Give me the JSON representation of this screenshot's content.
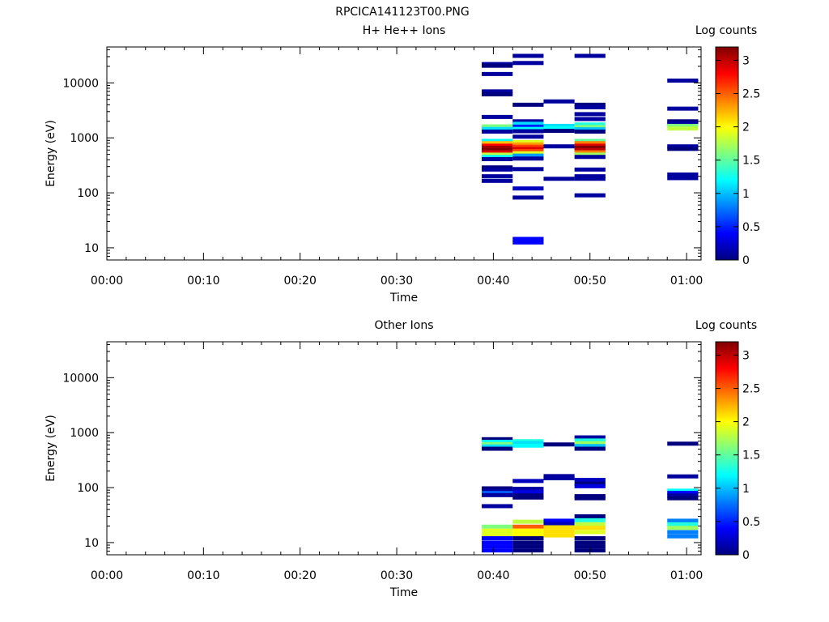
{
  "figure_title": "RPCICA141123T00.PNG",
  "colormap": [
    "#00007f",
    "#0000ff",
    "#007fff",
    "#00ffff",
    "#7fff7f",
    "#ffff00",
    "#ff7f00",
    "#ff0000",
    "#7f0000"
  ],
  "chart_data": [
    {
      "type": "heatmap",
      "title": "H+ He++ Ions",
      "xlabel": "Time",
      "ylabel": "Energy (eV)",
      "xlim": [
        0,
        61.5
      ],
      "ylim": [
        6,
        45000
      ],
      "yscale": "log",
      "x_ticks": [
        {
          "value": 0,
          "label": "00:00"
        },
        {
          "value": 10,
          "label": "00:10"
        },
        {
          "value": 20,
          "label": "00:20"
        },
        {
          "value": 30,
          "label": "00:30"
        },
        {
          "value": 40,
          "label": "00:40"
        },
        {
          "value": 50,
          "label": "00:50"
        },
        {
          "value": 60,
          "label": "01:00"
        }
      ],
      "y_ticks": [
        {
          "value": 10,
          "label": "10"
        },
        {
          "value": 100,
          "label": "100"
        },
        {
          "value": 1000,
          "label": "1000"
        },
        {
          "value": 10000,
          "label": "10000"
        }
      ],
      "colorbar": {
        "label": "Log counts",
        "range": [
          0,
          3.2
        ],
        "ticks": [
          {
            "value": 0,
            "label": "0"
          },
          {
            "value": 0.5,
            "label": "0.5"
          },
          {
            "value": 1,
            "label": "1"
          },
          {
            "value": 1.5,
            "label": "1.5"
          },
          {
            "value": 2,
            "label": "2"
          },
          {
            "value": 2.5,
            "label": "2.5"
          },
          {
            "value": 3,
            "label": "3"
          }
        ]
      },
      "cells": [
        {
          "t0": 38.8,
          "t1": 42.0,
          "e": 22000,
          "v": 0.1
        },
        {
          "t0": 38.8,
          "t1": 42.0,
          "e": 20500,
          "v": 0.0
        },
        {
          "t0": 38.8,
          "t1": 42.0,
          "e": 14500,
          "v": 0.1
        },
        {
          "t0": 38.8,
          "t1": 42.0,
          "e": 7000,
          "v": 0.1
        },
        {
          "t0": 38.8,
          "t1": 42.0,
          "e": 6200,
          "v": 0.0
        },
        {
          "t0": 38.8,
          "t1": 42.0,
          "e": 2400,
          "v": 0.1
        },
        {
          "t0": 38.8,
          "t1": 42.0,
          "e": 1620,
          "v": 1.6
        },
        {
          "t0": 38.8,
          "t1": 42.0,
          "e": 1450,
          "v": 1.1
        },
        {
          "t0": 38.8,
          "t1": 42.0,
          "e": 1300,
          "v": 0.1
        },
        {
          "t0": 38.8,
          "t1": 42.0,
          "e": 880,
          "v": 1.2
        },
        {
          "t0": 38.8,
          "t1": 42.0,
          "e": 800,
          "v": 2.2
        },
        {
          "t0": 38.8,
          "t1": 42.0,
          "e": 720,
          "v": 2.8
        },
        {
          "t0": 38.8,
          "t1": 42.0,
          "e": 660,
          "v": 3.1
        },
        {
          "t0": 38.8,
          "t1": 42.0,
          "e": 600,
          "v": 3.2
        },
        {
          "t0": 38.8,
          "t1": 42.0,
          "e": 545,
          "v": 2.9
        },
        {
          "t0": 38.8,
          "t1": 42.0,
          "e": 495,
          "v": 1.8
        },
        {
          "t0": 38.8,
          "t1": 42.0,
          "e": 450,
          "v": 1.2
        },
        {
          "t0": 38.8,
          "t1": 42.0,
          "e": 410,
          "v": 0.1
        },
        {
          "t0": 38.8,
          "t1": 42.0,
          "e": 290,
          "v": 0.0
        },
        {
          "t0": 38.8,
          "t1": 42.0,
          "e": 265,
          "v": 0.1
        },
        {
          "t0": 38.8,
          "t1": 42.0,
          "e": 200,
          "v": 0.1
        },
        {
          "t0": 38.8,
          "t1": 42.0,
          "e": 165,
          "v": 0.1
        },
        {
          "t0": 42.0,
          "t1": 45.2,
          "e": 31000,
          "v": 0.1
        },
        {
          "t0": 42.0,
          "t1": 45.2,
          "e": 23000,
          "v": 0.1
        },
        {
          "t0": 42.0,
          "t1": 45.2,
          "e": 4000,
          "v": 0.0
        },
        {
          "t0": 42.0,
          "t1": 45.2,
          "e": 2000,
          "v": 0.1
        },
        {
          "t0": 42.0,
          "t1": 45.2,
          "e": 1800,
          "v": 1.1
        },
        {
          "t0": 42.0,
          "t1": 45.2,
          "e": 1600,
          "v": 0.5
        },
        {
          "t0": 42.0,
          "t1": 45.2,
          "e": 1450,
          "v": 1.2
        },
        {
          "t0": 42.0,
          "t1": 45.2,
          "e": 1320,
          "v": 0.1
        },
        {
          "t0": 42.0,
          "t1": 45.2,
          "e": 1050,
          "v": 0.1
        },
        {
          "t0": 42.0,
          "t1": 45.2,
          "e": 840,
          "v": 1.9
        },
        {
          "t0": 42.0,
          "t1": 45.2,
          "e": 760,
          "v": 2.3
        },
        {
          "t0": 42.0,
          "t1": 45.2,
          "e": 690,
          "v": 2.6
        },
        {
          "t0": 42.0,
          "t1": 45.2,
          "e": 630,
          "v": 2.9
        },
        {
          "t0": 42.0,
          "t1": 45.2,
          "e": 575,
          "v": 2.6
        },
        {
          "t0": 42.0,
          "t1": 45.2,
          "e": 525,
          "v": 1.9
        },
        {
          "t0": 42.0,
          "t1": 45.2,
          "e": 475,
          "v": 0.9
        },
        {
          "t0": 42.0,
          "t1": 45.2,
          "e": 420,
          "v": 0.1
        },
        {
          "t0": 42.0,
          "t1": 45.2,
          "e": 270,
          "v": 0.1
        },
        {
          "t0": 42.0,
          "t1": 45.2,
          "e": 120,
          "v": 0.2
        },
        {
          "t0": 42.0,
          "t1": 45.2,
          "e": 82,
          "v": 0.1
        },
        {
          "t0": 42.0,
          "t1": 45.2,
          "e": 14.5,
          "v": 0.4
        },
        {
          "t0": 42.0,
          "t1": 45.2,
          "e": 12.5,
          "v": 0.4
        },
        {
          "t0": 45.2,
          "t1": 48.4,
          "e": 4600,
          "v": 0.1
        },
        {
          "t0": 45.2,
          "t1": 48.4,
          "e": 1650,
          "v": 1.1
        },
        {
          "t0": 45.2,
          "t1": 48.4,
          "e": 1500,
          "v": 1.2
        },
        {
          "t0": 45.2,
          "t1": 48.4,
          "e": 1340,
          "v": 0.0
        },
        {
          "t0": 45.2,
          "t1": 48.4,
          "e": 700,
          "v": 0.1
        },
        {
          "t0": 45.2,
          "t1": 48.4,
          "e": 180,
          "v": 0.1
        },
        {
          "t0": 48.4,
          "t1": 51.6,
          "e": 31000,
          "v": 0.1
        },
        {
          "t0": 48.4,
          "t1": 51.6,
          "e": 4000,
          "v": 0.0
        },
        {
          "t0": 48.4,
          "t1": 51.6,
          "e": 3600,
          "v": 0.1
        },
        {
          "t0": 48.4,
          "t1": 51.6,
          "e": 2700,
          "v": 0.1
        },
        {
          "t0": 48.4,
          "t1": 51.6,
          "e": 2200,
          "v": 0.1
        },
        {
          "t0": 48.4,
          "t1": 51.6,
          "e": 1750,
          "v": 1.3
        },
        {
          "t0": 48.4,
          "t1": 51.6,
          "e": 1580,
          "v": 1.6
        },
        {
          "t0": 48.4,
          "t1": 51.6,
          "e": 1430,
          "v": 1.0
        },
        {
          "t0": 48.4,
          "t1": 51.6,
          "e": 1300,
          "v": 0.0
        },
        {
          "t0": 48.4,
          "t1": 51.6,
          "e": 880,
          "v": 1.5
        },
        {
          "t0": 48.4,
          "t1": 51.6,
          "e": 800,
          "v": 2.4
        },
        {
          "t0": 48.4,
          "t1": 51.6,
          "e": 720,
          "v": 2.9
        },
        {
          "t0": 48.4,
          "t1": 51.6,
          "e": 660,
          "v": 3.2
        },
        {
          "t0": 48.4,
          "t1": 51.6,
          "e": 600,
          "v": 3.0
        },
        {
          "t0": 48.4,
          "t1": 51.6,
          "e": 545,
          "v": 2.4
        },
        {
          "t0": 48.4,
          "t1": 51.6,
          "e": 495,
          "v": 1.7
        },
        {
          "t0": 48.4,
          "t1": 51.6,
          "e": 450,
          "v": 0.1
        },
        {
          "t0": 48.4,
          "t1": 51.6,
          "e": 265,
          "v": 0.1
        },
        {
          "t0": 48.4,
          "t1": 51.6,
          "e": 200,
          "v": 0.1
        },
        {
          "t0": 48.4,
          "t1": 51.6,
          "e": 180,
          "v": 0.1
        },
        {
          "t0": 48.4,
          "t1": 51.6,
          "e": 90,
          "v": 0.1
        },
        {
          "t0": 58.0,
          "t1": 61.2,
          "e": 11000,
          "v": 0.1
        },
        {
          "t0": 58.0,
          "t1": 61.2,
          "e": 3400,
          "v": 0.1
        },
        {
          "t0": 58.0,
          "t1": 61.2,
          "e": 2000,
          "v": 0.0
        },
        {
          "t0": 58.0,
          "t1": 61.2,
          "e": 1850,
          "v": 0.1
        },
        {
          "t0": 58.0,
          "t1": 61.2,
          "e": 1650,
          "v": 1.6
        },
        {
          "t0": 58.0,
          "t1": 61.2,
          "e": 1480,
          "v": 1.8
        },
        {
          "t0": 58.0,
          "t1": 61.2,
          "e": 700,
          "v": 0.1
        },
        {
          "t0": 58.0,
          "t1": 61.2,
          "e": 630,
          "v": 0.0
        },
        {
          "t0": 58.0,
          "t1": 61.2,
          "e": 215,
          "v": 0.1
        },
        {
          "t0": 58.0,
          "t1": 61.2,
          "e": 185,
          "v": 0.1
        }
      ]
    },
    {
      "type": "heatmap",
      "title": "Other Ions",
      "xlabel": "Time",
      "ylabel": "Energy (eV)",
      "xlim": [
        0,
        61.5
      ],
      "ylim": [
        6,
        45000
      ],
      "yscale": "log",
      "x_ticks": [
        {
          "value": 0,
          "label": "00:00"
        },
        {
          "value": 10,
          "label": "00:10"
        },
        {
          "value": 20,
          "label": "00:20"
        },
        {
          "value": 30,
          "label": "00:30"
        },
        {
          "value": 40,
          "label": "00:40"
        },
        {
          "value": 50,
          "label": "00:50"
        },
        {
          "value": 60,
          "label": "01:00"
        }
      ],
      "y_ticks": [
        {
          "value": 10,
          "label": "10"
        },
        {
          "value": 100,
          "label": "100"
        },
        {
          "value": 1000,
          "label": "1000"
        },
        {
          "value": 10000,
          "label": "10000"
        }
      ],
      "colorbar": {
        "label": "Log counts",
        "range": [
          0,
          3.2
        ],
        "ticks": [
          {
            "value": 0,
            "label": "0"
          },
          {
            "value": 0.5,
            "label": "0.5"
          },
          {
            "value": 1,
            "label": "1"
          },
          {
            "value": 1.5,
            "label": "1.5"
          },
          {
            "value": 2,
            "label": "2"
          },
          {
            "value": 2.5,
            "label": "2.5"
          },
          {
            "value": 3,
            "label": "3"
          }
        ]
      },
      "cells": [
        {
          "t0": 38.8,
          "t1": 42.0,
          "e": 760,
          "v": 0.0
        },
        {
          "t0": 38.8,
          "t1": 42.0,
          "e": 680,
          "v": 1.2
        },
        {
          "t0": 38.8,
          "t1": 42.0,
          "e": 620,
          "v": 1.6
        },
        {
          "t0": 38.8,
          "t1": 42.0,
          "e": 560,
          "v": 1.1
        },
        {
          "t0": 38.8,
          "t1": 42.0,
          "e": 510,
          "v": 0.0
        },
        {
          "t0": 38.8,
          "t1": 42.0,
          "e": 97,
          "v": 0.0
        },
        {
          "t0": 38.8,
          "t1": 42.0,
          "e": 88,
          "v": 0.1
        },
        {
          "t0": 38.8,
          "t1": 42.0,
          "e": 80,
          "v": 0.7
        },
        {
          "t0": 38.8,
          "t1": 42.0,
          "e": 73,
          "v": 0.1
        },
        {
          "t0": 38.8,
          "t1": 42.0,
          "e": 46,
          "v": 0.1
        },
        {
          "t0": 38.8,
          "t1": 42.0,
          "e": 19.5,
          "v": 1.6
        },
        {
          "t0": 38.8,
          "t1": 42.0,
          "e": 16.5,
          "v": 1.9
        },
        {
          "t0": 38.8,
          "t1": 42.0,
          "e": 14,
          "v": 1.9
        },
        {
          "t0": 38.8,
          "t1": 42.0,
          "e": 12,
          "v": 0.4
        },
        {
          "t0": 38.8,
          "t1": 42.0,
          "e": 10,
          "v": 0.4
        },
        {
          "t0": 38.8,
          "t1": 42.0,
          "e": 8.5,
          "v": 0.4
        },
        {
          "t0": 38.8,
          "t1": 42.0,
          "e": 7.2,
          "v": 0.4
        },
        {
          "t0": 42.0,
          "t1": 45.2,
          "e": 700,
          "v": 1.3
        },
        {
          "t0": 42.0,
          "t1": 45.2,
          "e": 640,
          "v": 1.1
        },
        {
          "t0": 42.0,
          "t1": 45.2,
          "e": 580,
          "v": 1.2
        },
        {
          "t0": 42.0,
          "t1": 45.2,
          "e": 132,
          "v": 0.2
        },
        {
          "t0": 42.0,
          "t1": 45.2,
          "e": 95,
          "v": 0.1
        },
        {
          "t0": 42.0,
          "t1": 45.2,
          "e": 84,
          "v": 0.3
        },
        {
          "t0": 42.0,
          "t1": 45.2,
          "e": 72,
          "v": 0.0
        },
        {
          "t0": 42.0,
          "t1": 45.2,
          "e": 66,
          "v": 0.0
        },
        {
          "t0": 42.0,
          "t1": 45.2,
          "e": 24,
          "v": 1.8
        },
        {
          "t0": 42.0,
          "t1": 45.2,
          "e": 19.5,
          "v": 2.5
        },
        {
          "t0": 42.0,
          "t1": 45.2,
          "e": 16.5,
          "v": 2.0
        },
        {
          "t0": 42.0,
          "t1": 45.2,
          "e": 14,
          "v": 2.0
        },
        {
          "t0": 42.0,
          "t1": 45.2,
          "e": 12,
          "v": 0.0
        },
        {
          "t0": 42.0,
          "t1": 45.2,
          "e": 10,
          "v": 0.0
        },
        {
          "t0": 42.0,
          "t1": 45.2,
          "e": 8.5,
          "v": 0.0
        },
        {
          "t0": 42.0,
          "t1": 45.2,
          "e": 7.2,
          "v": 0.0
        },
        {
          "t0": 45.2,
          "t1": 48.4,
          "e": 610,
          "v": 0.0
        },
        {
          "t0": 45.2,
          "t1": 48.4,
          "e": 162,
          "v": 0.1
        },
        {
          "t0": 45.2,
          "t1": 48.4,
          "e": 148,
          "v": 0.1
        },
        {
          "t0": 45.2,
          "t1": 48.4,
          "e": 25,
          "v": 0.4
        },
        {
          "t0": 45.2,
          "t1": 48.4,
          "e": 22,
          "v": 0.2
        },
        {
          "t0": 45.2,
          "t1": 48.4,
          "e": 19,
          "v": 2.1
        },
        {
          "t0": 45.2,
          "t1": 48.4,
          "e": 16,
          "v": 2.1
        },
        {
          "t0": 45.2,
          "t1": 48.4,
          "e": 13.5,
          "v": 2.1
        },
        {
          "t0": 48.4,
          "t1": 51.6,
          "e": 820,
          "v": 0.1
        },
        {
          "t0": 48.4,
          "t1": 51.6,
          "e": 720,
          "v": 1.3
        },
        {
          "t0": 48.4,
          "t1": 51.6,
          "e": 640,
          "v": 1.7
        },
        {
          "t0": 48.4,
          "t1": 51.6,
          "e": 570,
          "v": 1.0
        },
        {
          "t0": 48.4,
          "t1": 51.6,
          "e": 510,
          "v": 0.0
        },
        {
          "t0": 48.4,
          "t1": 51.6,
          "e": 138,
          "v": 0.2
        },
        {
          "t0": 48.4,
          "t1": 51.6,
          "e": 118,
          "v": 0.0
        },
        {
          "t0": 48.4,
          "t1": 51.6,
          "e": 106,
          "v": 0.3
        },
        {
          "t0": 48.4,
          "t1": 51.6,
          "e": 70,
          "v": 0.0
        },
        {
          "t0": 48.4,
          "t1": 51.6,
          "e": 64,
          "v": 0.0
        },
        {
          "t0": 48.4,
          "t1": 51.6,
          "e": 30,
          "v": 0.0
        },
        {
          "t0": 48.4,
          "t1": 51.6,
          "e": 25.5,
          "v": 1.3
        },
        {
          "t0": 48.4,
          "t1": 51.6,
          "e": 21.5,
          "v": 1.8
        },
        {
          "t0": 48.4,
          "t1": 51.6,
          "e": 18.5,
          "v": 2.1
        },
        {
          "t0": 48.4,
          "t1": 51.6,
          "e": 15.5,
          "v": 1.9
        },
        {
          "t0": 48.4,
          "t1": 51.6,
          "e": 12,
          "v": 0.0
        },
        {
          "t0": 48.4,
          "t1": 51.6,
          "e": 10,
          "v": 0.0
        },
        {
          "t0": 48.4,
          "t1": 51.6,
          "e": 8.5,
          "v": 0.0
        },
        {
          "t0": 48.4,
          "t1": 51.6,
          "e": 7.2,
          "v": 0.0
        },
        {
          "t0": 58.0,
          "t1": 61.2,
          "e": 630,
          "v": 0.0
        },
        {
          "t0": 58.0,
          "t1": 61.2,
          "e": 160,
          "v": 0.1
        },
        {
          "t0": 58.0,
          "t1": 61.2,
          "e": 88,
          "v": 1.2
        },
        {
          "t0": 58.0,
          "t1": 61.2,
          "e": 80,
          "v": 0.4
        },
        {
          "t0": 58.0,
          "t1": 61.2,
          "e": 72,
          "v": 0.1
        },
        {
          "t0": 58.0,
          "t1": 61.2,
          "e": 64,
          "v": 0.0
        },
        {
          "t0": 58.0,
          "t1": 61.2,
          "e": 25,
          "v": 0.8
        },
        {
          "t0": 58.0,
          "t1": 61.2,
          "e": 21.5,
          "v": 1.3
        },
        {
          "t0": 58.0,
          "t1": 61.2,
          "e": 18.5,
          "v": 1.7
        },
        {
          "t0": 58.0,
          "t1": 61.2,
          "e": 15.5,
          "v": 0.8
        },
        {
          "t0": 58.0,
          "t1": 61.2,
          "e": 13,
          "v": 0.8
        }
      ]
    }
  ]
}
